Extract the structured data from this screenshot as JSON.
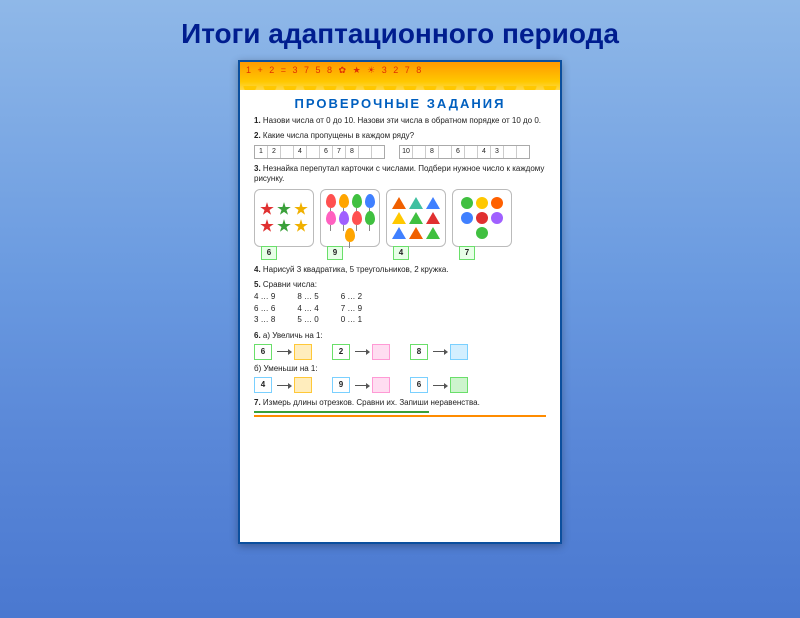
{
  "slide": {
    "title": "Итоги адаптационного периода"
  },
  "worksheet": {
    "decor_text": "1 + 2 = 3  7  5  8  ✿  ★  ☀  3  2  7  8",
    "header": "ПРОВЕРОЧНЫЕ ЗАДАНИЯ",
    "tasks": {
      "t1": {
        "num": "1.",
        "text": "Назови числа от 0 до 10. Назови эти числа в обратном порядке от 10 до 0."
      },
      "t2": {
        "num": "2.",
        "text": "Какие числа пропущены в каждом ряду?",
        "seq1": [
          "1",
          "2",
          "",
          "4",
          "",
          "6",
          "7",
          "8",
          "",
          ""
        ],
        "seq2": [
          "10",
          "",
          "8",
          "",
          "6",
          "",
          "4",
          "3",
          "",
          ""
        ]
      },
      "t3": {
        "num": "3.",
        "text": "Незнайка перепутал карточки с числами. Подбери нужное число к каждому рисунку.",
        "cards": [
          {
            "label": "6",
            "type": "stars",
            "items": [
              {
                "color": "#e03030"
              },
              {
                "color": "#3aa03a"
              },
              {
                "color": "#f0b000"
              },
              {
                "color": "#e03030"
              },
              {
                "color": "#3aa03a"
              },
              {
                "color": "#f0b000"
              }
            ]
          },
          {
            "label": "9",
            "type": "balloons",
            "items": [
              {
                "color": "#ff5050"
              },
              {
                "color": "#ffa500"
              },
              {
                "color": "#40c040"
              },
              {
                "color": "#4080ff"
              },
              {
                "color": "#ff60c0"
              },
              {
                "color": "#a060ff"
              },
              {
                "color": "#ff5050"
              },
              {
                "color": "#40c040"
              },
              {
                "color": "#ffa500"
              }
            ]
          },
          {
            "label": "4",
            "type": "triangles",
            "items": [
              {
                "color": "#f06000"
              },
              {
                "color": "#40c0a0"
              },
              {
                "color": "#4080ff"
              },
              {
                "color": "#ffc800"
              },
              {
                "color": "#40c040"
              },
              {
                "color": "#e03030"
              },
              {
                "color": "#4080ff"
              },
              {
                "color": "#f06000"
              },
              {
                "color": "#40c040"
              }
            ]
          },
          {
            "label": "7",
            "type": "circles",
            "items": [
              {
                "color": "#40c040"
              },
              {
                "color": "#ffc800"
              },
              {
                "color": "#ff6000"
              },
              {
                "color": "#4080ff"
              },
              {
                "color": "#e03030"
              },
              {
                "color": "#a060ff"
              },
              {
                "color": "#40c040"
              }
            ]
          }
        ]
      },
      "t4": {
        "num": "4.",
        "text": "Нарисуй 3 квадратика, 5 треугольников, 2 кружка."
      },
      "t5": {
        "num": "5.",
        "text": "Сравни числа:",
        "cols": [
          [
            "4 … 9",
            "6 … 6",
            "3 … 8"
          ],
          [
            "8 … 5",
            "4 … 4",
            "5 … 0"
          ],
          [
            "6 … 2",
            "7 … 9",
            "0 … 1"
          ]
        ]
      },
      "t6": {
        "num": "6.",
        "a_label": "а) Увеличь на 1:",
        "a_row": [
          {
            "v": "6",
            "c": "#6adf6a"
          },
          {
            "v": "",
            "c": "#ffc838"
          },
          {
            "v": "2",
            "c": "#6adf6a"
          },
          {
            "v": "",
            "c": "#ff9ad5"
          },
          {
            "v": "8",
            "c": "#6adf6a"
          },
          {
            "v": "",
            "c": "#7ad0ff"
          }
        ],
        "b_label": "б) Уменьши на 1:",
        "b_row": [
          {
            "v": "4",
            "c": "#7ad0ff"
          },
          {
            "v": "",
            "c": "#ffc838"
          },
          {
            "v": "9",
            "c": "#7ad0ff"
          },
          {
            "v": "",
            "c": "#ff9ad5"
          },
          {
            "v": "6",
            "c": "#7ad0ff"
          },
          {
            "v": "",
            "c": "#6adf6a"
          }
        ]
      },
      "t7": {
        "num": "7.",
        "text": "Измерь длины отрезков. Сравни их. Запиши неравенства."
      }
    }
  },
  "colors": {
    "title": "#001d8f",
    "page_border": "#0b4f9e",
    "header": "#005fbf",
    "green_box": "#6adf6a",
    "orange_ruler": "#ff8c00",
    "green_ruler": "#3aa03a"
  }
}
